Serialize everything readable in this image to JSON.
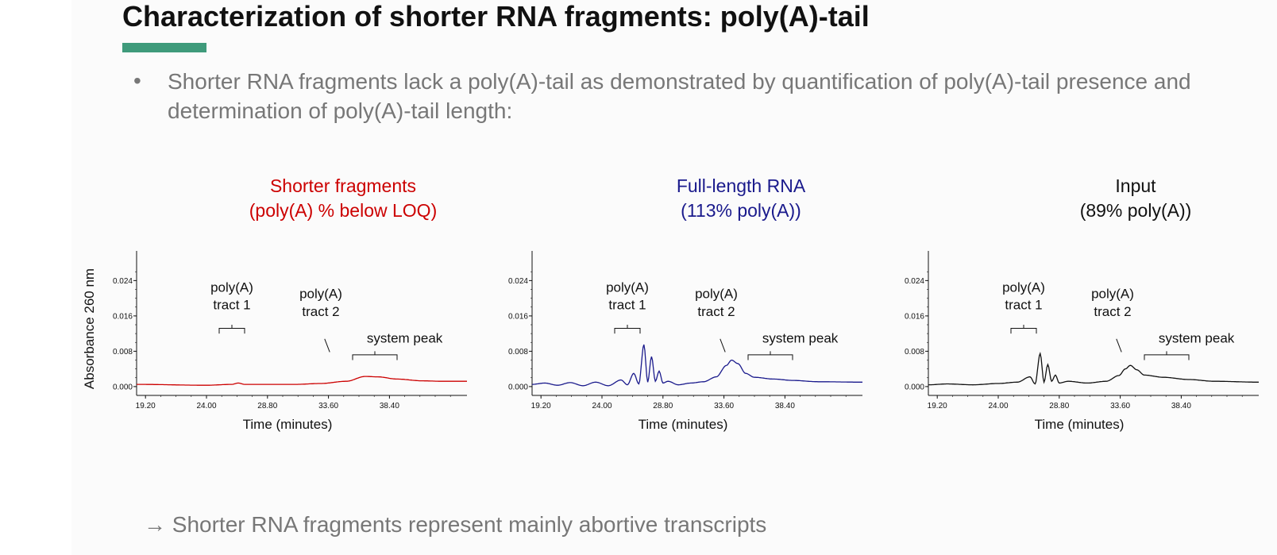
{
  "slide": {
    "title": "Characterization of shorter RNA fragments: poly(A)-tail",
    "accent_color": "#3f9b7b",
    "bullet": "•",
    "bullet_text": "Shorter RNA fragments lack a poly(A)-tail as demonstrated by quantification of poly(A)-tail presence and determination of poly(A)-tail length:",
    "y_axis_label": "Absorbance 260 nm",
    "conclusion": "→ Shorter RNA fragments represent mainly abortive transcripts"
  },
  "chart_data": [
    {
      "type": "line",
      "title_line1": "Shorter fragments",
      "title_line2": "(poly(A) % below LOQ)",
      "color": "#cc0000",
      "xlabel": "Time (minutes)",
      "ylabel": "Absorbance 260 nm",
      "xlim": [
        18.5,
        44.5
      ],
      "ylim": [
        -0.002,
        0.03
      ],
      "x_ticks": [
        "19.20",
        "24.00",
        "28.80",
        "33.60",
        "38.40"
      ],
      "y_ticks": [
        "0.000",
        "0.008",
        "0.016",
        "0.024"
      ],
      "annotations": [
        "poly(A)",
        "tract 1",
        "poly(A)",
        "tract 2",
        "system peak"
      ],
      "series": [
        {
          "points": [
            [
              18.5,
              0.0005
            ],
            [
              24.0,
              0.0003
            ],
            [
              26.0,
              0.0005
            ],
            [
              26.5,
              0.0008
            ],
            [
              27.0,
              0.0005
            ],
            [
              31.0,
              0.0005
            ],
            [
              33.0,
              0.0007
            ],
            [
              35.0,
              0.0012
            ],
            [
              36.5,
              0.0023
            ],
            [
              37.5,
              0.0022
            ],
            [
              39.0,
              0.0017
            ],
            [
              41.0,
              0.0013
            ],
            [
              42.5,
              0.0012
            ],
            [
              44.5,
              0.0012
            ]
          ]
        }
      ]
    },
    {
      "type": "line",
      "title_line1": "Full-length RNA",
      "title_line2": "(113% poly(A))",
      "color": "#1a1a8c",
      "xlabel": "Time (minutes)",
      "xlim": [
        18.5,
        44.5
      ],
      "ylim": [
        -0.002,
        0.03
      ],
      "x_ticks": [
        "19.20",
        "24.00",
        "28.80",
        "33.60",
        "38.40"
      ],
      "y_ticks": [
        "0.000",
        "0.008",
        "0.016",
        "0.024"
      ],
      "annotations": [
        "poly(A)",
        "tract 1",
        "poly(A)",
        "tract 2",
        "system peak"
      ],
      "series": [
        {
          "points": [
            [
              18.5,
              0.0005
            ],
            [
              19.5,
              0.0008
            ],
            [
              20.5,
              0.0003
            ],
            [
              21.5,
              0.0009
            ],
            [
              22.5,
              0.0002
            ],
            [
              23.5,
              0.001
            ],
            [
              24.5,
              0.0002
            ],
            [
              25.5,
              0.0015
            ],
            [
              26.0,
              0.0004
            ],
            [
              26.5,
              0.003
            ],
            [
              26.9,
              0.0006
            ],
            [
              27.3,
              0.0095
            ],
            [
              27.6,
              0.001
            ],
            [
              27.9,
              0.0068
            ],
            [
              28.2,
              0.0012
            ],
            [
              28.5,
              0.0035
            ],
            [
              28.8,
              0.0008
            ],
            [
              29.2,
              0.0012
            ],
            [
              30.0,
              0.0004
            ],
            [
              31.0,
              0.0008
            ],
            [
              32.0,
              0.0011
            ],
            [
              33.0,
              0.0022
            ],
            [
              33.8,
              0.0048
            ],
            [
              34.2,
              0.006
            ],
            [
              34.7,
              0.0052
            ],
            [
              35.3,
              0.003
            ],
            [
              36.0,
              0.0021
            ],
            [
              37.5,
              0.0017
            ],
            [
              39.0,
              0.0014
            ],
            [
              41.0,
              0.0011
            ],
            [
              44.5,
              0.001
            ]
          ]
        }
      ]
    },
    {
      "type": "line",
      "title_line1": "Input",
      "title_line2": "(89% poly(A))",
      "color": "#111111",
      "xlabel": "Time (minutes)",
      "xlim": [
        18.5,
        44.5
      ],
      "ylim": [
        -0.002,
        0.03
      ],
      "x_ticks": [
        "19.20",
        "24.00",
        "28.80",
        "33.60",
        "38.40"
      ],
      "y_ticks": [
        "0.000",
        "0.008",
        "0.016",
        "0.024"
      ],
      "annotations": [
        "poly(A)",
        "tract 1",
        "poly(A)",
        "tract 2",
        "system peak"
      ],
      "series": [
        {
          "points": [
            [
              18.5,
              0.0004
            ],
            [
              20.0,
              0.0006
            ],
            [
              22.0,
              0.0004
            ],
            [
              24.0,
              0.0007
            ],
            [
              25.5,
              0.001
            ],
            [
              26.5,
              0.0022
            ],
            [
              26.9,
              0.0006
            ],
            [
              27.3,
              0.0075
            ],
            [
              27.6,
              0.001
            ],
            [
              27.9,
              0.005
            ],
            [
              28.2,
              0.0012
            ],
            [
              28.5,
              0.0026
            ],
            [
              28.8,
              0.0008
            ],
            [
              29.5,
              0.0012
            ],
            [
              31.0,
              0.0008
            ],
            [
              32.5,
              0.0012
            ],
            [
              33.5,
              0.0025
            ],
            [
              34.0,
              0.004
            ],
            [
              34.4,
              0.0048
            ],
            [
              34.9,
              0.0038
            ],
            [
              35.5,
              0.0026
            ],
            [
              37.0,
              0.0021
            ],
            [
              39.0,
              0.0016
            ],
            [
              41.0,
              0.0012
            ],
            [
              44.5,
              0.001
            ]
          ]
        }
      ]
    }
  ]
}
